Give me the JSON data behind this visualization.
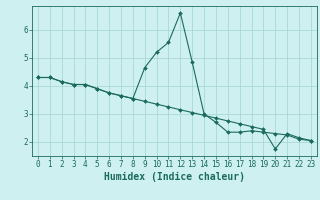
{
  "title": "",
  "xlabel": "Humidex (Indice chaleur)",
  "background_color": "#cff0f0",
  "grid_color": "#aad8d8",
  "line_color": "#1a6b5a",
  "xlim": [
    -0.5,
    23.5
  ],
  "ylim": [
    1.5,
    6.85
  ],
  "yticks": [
    2,
    3,
    4,
    5,
    6
  ],
  "xticks": [
    0,
    1,
    2,
    3,
    4,
    5,
    6,
    7,
    8,
    9,
    10,
    11,
    12,
    13,
    14,
    15,
    16,
    17,
    18,
    19,
    20,
    21,
    22,
    23
  ],
  "line1_x": [
    0,
    1,
    2,
    3,
    4,
    5,
    6,
    7,
    8,
    9,
    10,
    11,
    12,
    13,
    14,
    15,
    16,
    17,
    18,
    19,
    20,
    21,
    22,
    23
  ],
  "line1_y": [
    4.3,
    4.3,
    4.15,
    4.05,
    4.05,
    3.9,
    3.75,
    3.65,
    3.55,
    4.65,
    5.2,
    5.55,
    6.6,
    4.85,
    3.0,
    2.7,
    2.35,
    2.35,
    2.4,
    2.35,
    2.3,
    2.25,
    2.1,
    2.05
  ],
  "line2_x": [
    0,
    1,
    2,
    3,
    4,
    5,
    6,
    7,
    8,
    9,
    10,
    11,
    12,
    13,
    14,
    15,
    16,
    17,
    18,
    19,
    20,
    21,
    22,
    23
  ],
  "line2_y": [
    4.3,
    4.3,
    4.15,
    4.05,
    4.05,
    3.9,
    3.75,
    3.65,
    3.55,
    3.45,
    3.35,
    3.25,
    3.15,
    3.05,
    2.95,
    2.85,
    2.75,
    2.65,
    2.55,
    2.45,
    1.75,
    2.3,
    2.15,
    2.05
  ],
  "tick_fontsize": 5.5,
  "label_fontsize": 7.0
}
